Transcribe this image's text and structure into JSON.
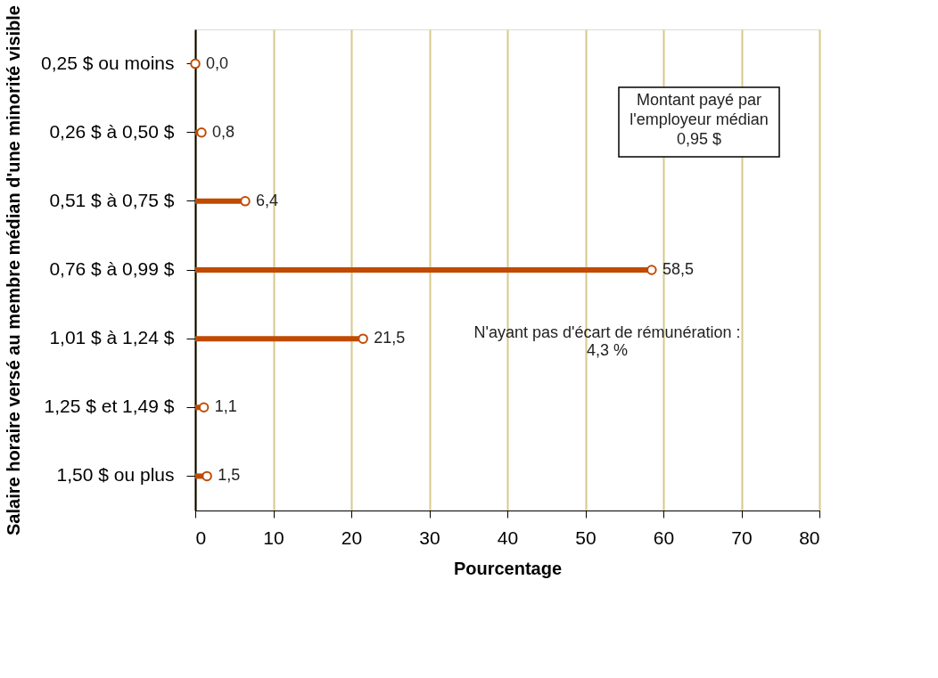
{
  "chart_data": {
    "type": "lollipop",
    "orientation": "horizontal",
    "xlabel": "Pourcentage",
    "ylabel": "Salaire horaire versé au membre médian d'une minorité visible",
    "categories": [
      "0,25 $ ou moins",
      "0,26 $ à 0,50 $",
      "0,51 $ à 0,75 $",
      "0,76 $ à 0,99 $",
      "1,01 $ à 1,24 $",
      "1,25 $ et 1,49 $",
      "1,50 $ ou plus"
    ],
    "values": [
      0.0,
      0.8,
      6.4,
      58.5,
      21.5,
      1.1,
      1.5
    ],
    "value_labels": [
      "0,0",
      "0,8",
      "6,4",
      "58,5",
      "21,5",
      "1,1",
      "1,5"
    ],
    "color": "#c04a00",
    "marker": "circle",
    "xlim": [
      0,
      80
    ],
    "xticks": [
      0,
      10,
      20,
      30,
      40,
      50,
      60,
      70,
      80
    ],
    "grid": "x",
    "annotations": [
      "Montant payé par l'employeur médian 0,95 $",
      "N'ayant pas d'écart de rémunération : 4,3 %"
    ]
  }
}
